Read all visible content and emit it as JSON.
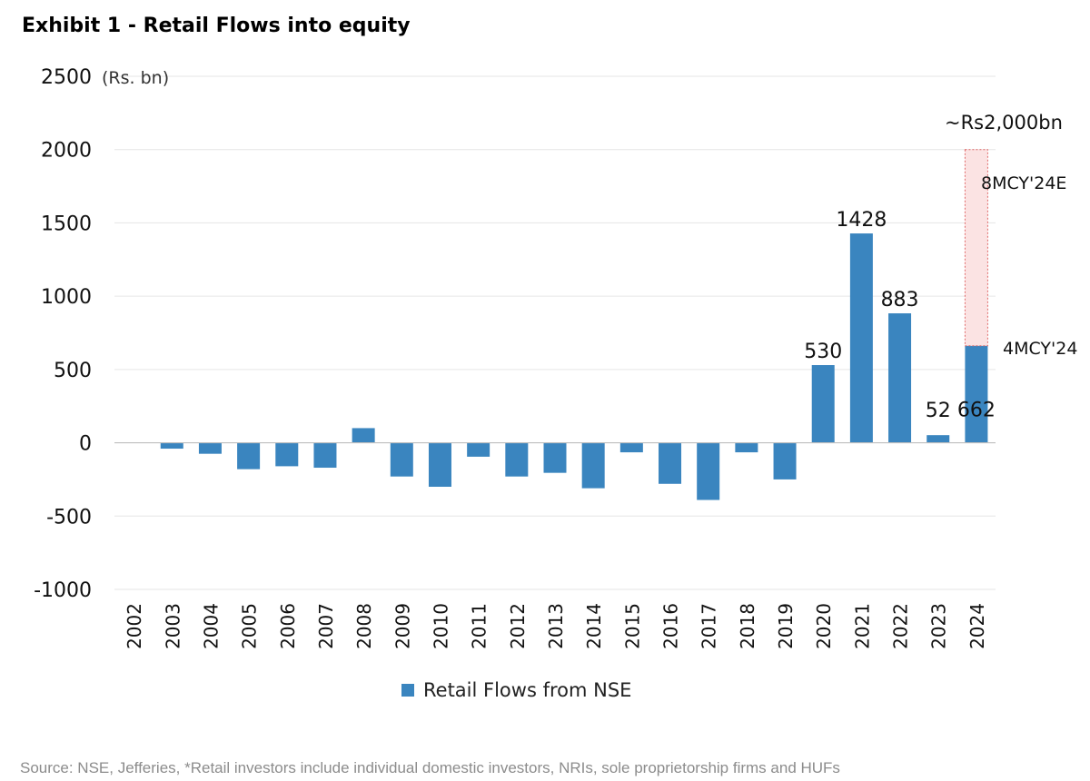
{
  "title": "Exhibit 1 - Retail Flows into equity",
  "source": "Source: NSE, Jefferies, *Retail investors include individual domestic investors, NRIs, sole proprietorship firms and HUFs",
  "colors": {
    "bar": "#3a85bf",
    "estimate_border": "#e06666",
    "estimate_fill": "#fbe3e3",
    "grid": "#e6e6e6",
    "axis": "#bfbfbf"
  },
  "chart_data": {
    "type": "bar",
    "title": "Exhibit 1 - Retail Flows into equity",
    "unit_label": "(Rs. bn)",
    "xlabel": "",
    "ylabel": "",
    "ylim": [
      -1000,
      2500
    ],
    "yticks": [
      2500,
      2000,
      1500,
      1000,
      500,
      0,
      -500,
      -1000
    ],
    "grid": true,
    "legend_position": "bottom-center",
    "categories": [
      "2002",
      "2003",
      "2004",
      "2005",
      "2006",
      "2007",
      "2008",
      "2009",
      "2010",
      "2011",
      "2012",
      "2013",
      "2014",
      "2015",
      "2016",
      "2017",
      "2018",
      "2019",
      "2020",
      "2021",
      "2022",
      "2023",
      "2024"
    ],
    "series": [
      {
        "name": "Retail Flows from NSE",
        "values": [
          0,
          -40,
          -75,
          -180,
          -160,
          -170,
          100,
          -230,
          -300,
          -95,
          -230,
          -205,
          -310,
          -65,
          -280,
          -390,
          -65,
          -250,
          530,
          1428,
          883,
          52,
          662
        ]
      }
    ],
    "data_labels": [
      {
        "category": "2020",
        "text": "530"
      },
      {
        "category": "2021",
        "text": "1428"
      },
      {
        "category": "2022",
        "text": "883"
      },
      {
        "category": "2023",
        "text": "52"
      },
      {
        "category": "2024",
        "text": "662"
      }
    ],
    "estimate": {
      "category": "2024",
      "from": 662,
      "to": 2000,
      "label_total": "~Rs2,000bn",
      "label_estimate": "8MCY'24E",
      "label_actual": "4MCY'24"
    }
  }
}
